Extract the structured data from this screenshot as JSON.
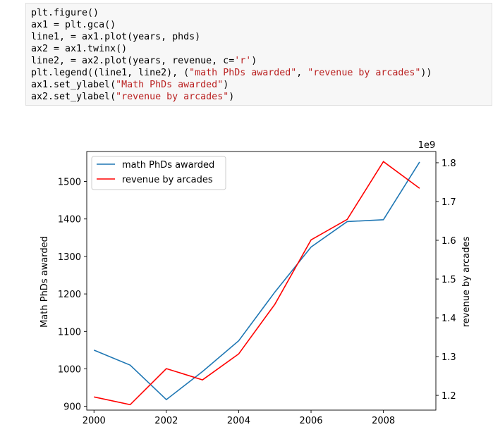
{
  "code": {
    "lines": [
      [
        {
          "t": "plt.figure()"
        }
      ],
      [
        {
          "t": "ax1 = plt.gca()"
        }
      ],
      [
        {
          "t": "line1, = ax1.plot(years, phds)"
        }
      ],
      [
        {
          "t": "ax2 = ax1.twinx()"
        }
      ],
      [
        {
          "t": "line2, = ax2.plot(years, revenue, c="
        },
        {
          "t": "'r'",
          "s": true
        },
        {
          "t": ")"
        }
      ],
      [
        {
          "t": "plt.legend((line1, line2), ("
        },
        {
          "t": "\"math PhDs awarded\"",
          "s": true
        },
        {
          "t": ", "
        },
        {
          "t": "\"revenue by arcades\"",
          "s": true
        },
        {
          "t": "))"
        }
      ],
      [
        {
          "t": "ax1.set_ylabel("
        },
        {
          "t": "\"Math PhDs awarded\"",
          "s": true
        },
        {
          "t": ")"
        }
      ],
      [
        {
          "t": "ax2.set_ylabel("
        },
        {
          "t": "\"revenue by arcades\"",
          "s": true
        },
        {
          "t": ")"
        }
      ]
    ]
  },
  "chart_data": {
    "type": "line",
    "x": [
      2000,
      2001,
      2002,
      2003,
      2004,
      2005,
      2006,
      2007,
      2008,
      2009
    ],
    "x_ticks": [
      "2000",
      "2002",
      "2004",
      "2006",
      "2008"
    ],
    "xlim": [
      1999.8,
      2009.45
    ],
    "ylabel_left": "Math PhDs awarded",
    "ylabel_right": "revenue by arcades",
    "offset_text_right": "1e9",
    "y_left_ticks": [
      "900",
      "1000",
      "1100",
      "1200",
      "1300",
      "1400",
      "1500"
    ],
    "y_left_lim": [
      890,
      1580
    ],
    "y_right_ticks": [
      "1.2",
      "1.3",
      "1.4",
      "1.5",
      "1.6",
      "1.7",
      "1.8"
    ],
    "y_right_lim": [
      1.162,
      1.829
    ],
    "series": [
      {
        "name": "math PhDs awarded",
        "axis": "left",
        "color": "#1f77b4",
        "values": [
          1050,
          1010,
          918,
          993,
          1075,
          1205,
          1325,
          1393,
          1398,
          1552
        ]
      },
      {
        "name": "revenue by arcades",
        "axis": "right",
        "color": "#ff0000",
        "values": [
          1.196,
          1.176,
          1.269,
          1.24,
          1.307,
          1.435,
          1.601,
          1.654,
          1.803,
          1.734
        ]
      }
    ],
    "legend": "upper-left",
    "grid": false
  }
}
